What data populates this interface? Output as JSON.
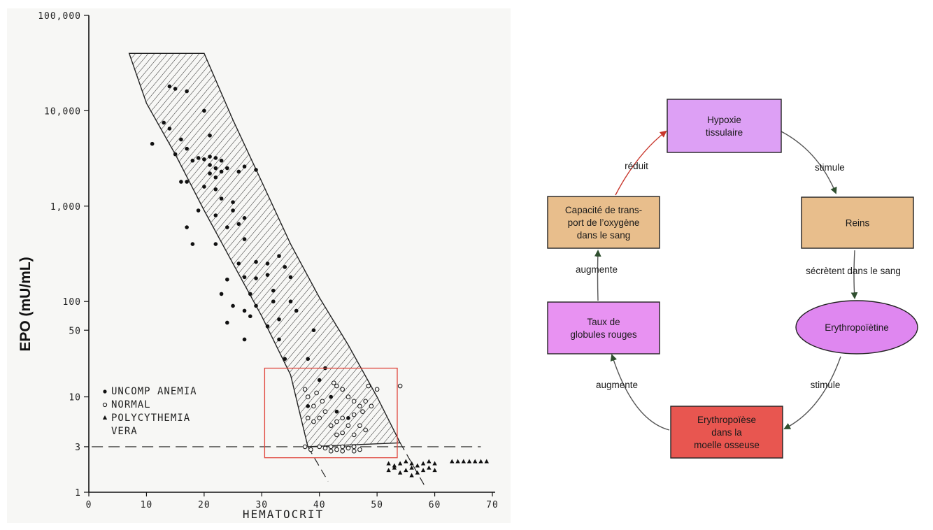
{
  "chart_data": {
    "type": "scatter",
    "xlabel": "HEMATOCRIT",
    "ylabel": "EPO (mU/mL)",
    "y_scale": "log",
    "xlim": [
      0,
      70
    ],
    "ylim": [
      1,
      100000
    ],
    "x_ticks": [
      {
        "value": 0,
        "label": "0"
      },
      {
        "value": 10,
        "label": "10"
      },
      {
        "value": 20,
        "label": "20"
      },
      {
        "value": 30,
        "label": "30"
      },
      {
        "value": 40,
        "label": "40"
      },
      {
        "value": 50,
        "label": "50"
      },
      {
        "value": 60,
        "label": "60"
      },
      {
        "value": 70,
        "label": "70"
      }
    ],
    "y_ticks": [
      {
        "value": 1,
        "label": "1"
      },
      {
        "value": 3,
        "label": "3"
      },
      {
        "value": 10,
        "label": "10"
      },
      {
        "value": 50,
        "label": "50"
      },
      {
        "value": 100,
        "label": "100"
      },
      {
        "value": 1000,
        "label": "1,000"
      },
      {
        "value": 10000,
        "label": "10,000"
      },
      {
        "value": 100000,
        "label": "100,000"
      }
    ],
    "legend": {
      "placement": "lower-left",
      "items": [
        {
          "marker": "circle-filled",
          "label": "UNCOMP ANEMIA"
        },
        {
          "marker": "circle-open",
          "label": "NORMAL"
        },
        {
          "marker": "triangle-filled",
          "label": "POLYCYTHEMIA"
        },
        {
          "marker": "none",
          "label": "VERA"
        }
      ]
    },
    "reference_band": {
      "upper_edge": [
        [
          20,
          40000
        ],
        [
          25,
          8000
        ],
        [
          30,
          1800
        ],
        [
          35,
          400
        ],
        [
          40,
          110
        ],
        [
          45,
          35
        ],
        [
          50,
          10
        ],
        [
          54,
          3.3
        ]
      ],
      "lower_edge": [
        [
          7,
          40000
        ],
        [
          10,
          12000
        ],
        [
          15,
          3500
        ],
        [
          20,
          900
        ],
        [
          25,
          250
        ],
        [
          30,
          70
        ],
        [
          35,
          17
        ],
        [
          38,
          3
        ]
      ],
      "band_line_extension": [
        [
          38,
          3
        ],
        [
          41.5,
          1.3
        ]
      ],
      "upper_line_extension": [
        [
          54,
          3.3
        ],
        [
          58.5,
          1.1
        ]
      ]
    },
    "threshold_line": {
      "y": 3,
      "style": "dashed"
    },
    "highlight_box": {
      "xlim": [
        30.5,
        53.5
      ],
      "ylim": [
        2.3,
        20
      ],
      "color": "#e0463c"
    },
    "series": [
      {
        "name": "UNCOMP ANEMIA",
        "marker": "circle-filled",
        "points": [
          [
            14,
            18000
          ],
          [
            15,
            17000
          ],
          [
            17,
            16000
          ],
          [
            11,
            4500
          ],
          [
            13,
            7500
          ],
          [
            14,
            6500
          ],
          [
            16,
            5000
          ],
          [
            20,
            10000
          ],
          [
            21,
            5500
          ],
          [
            15,
            3500
          ],
          [
            17,
            4000
          ],
          [
            18,
            3000
          ],
          [
            19,
            3200
          ],
          [
            20,
            3100
          ],
          [
            21,
            3300
          ],
          [
            22,
            3200
          ],
          [
            23,
            3000
          ],
          [
            21,
            2700
          ],
          [
            22,
            2500
          ],
          [
            21,
            2200
          ],
          [
            22,
            2000
          ],
          [
            23,
            2300
          ],
          [
            24,
            2500
          ],
          [
            26,
            2300
          ],
          [
            27,
            2600
          ],
          [
            29,
            2400
          ],
          [
            16,
            1800
          ],
          [
            17,
            1800
          ],
          [
            20,
            1600
          ],
          [
            22,
            1500
          ],
          [
            23,
            1200
          ],
          [
            25,
            1100
          ],
          [
            19,
            900
          ],
          [
            22,
            800
          ],
          [
            25,
            900
          ],
          [
            27,
            750
          ],
          [
            17,
            600
          ],
          [
            24,
            600
          ],
          [
            26,
            650
          ],
          [
            18,
            400
          ],
          [
            22,
            400
          ],
          [
            27,
            450
          ],
          [
            33,
            300
          ],
          [
            26,
            250
          ],
          [
            29,
            260
          ],
          [
            31,
            250
          ],
          [
            34,
            230
          ],
          [
            24,
            170
          ],
          [
            27,
            180
          ],
          [
            29,
            175
          ],
          [
            31,
            190
          ],
          [
            35,
            180
          ],
          [
            23,
            120
          ],
          [
            28,
            120
          ],
          [
            32,
            130
          ],
          [
            25,
            90
          ],
          [
            27,
            80
          ],
          [
            29,
            90
          ],
          [
            32,
            100
          ],
          [
            35,
            100
          ],
          [
            24,
            60
          ],
          [
            28,
            70
          ],
          [
            31,
            55
          ],
          [
            33,
            65
          ],
          [
            36,
            80
          ],
          [
            27,
            40
          ],
          [
            33,
            40
          ],
          [
            39,
            50
          ],
          [
            34,
            25
          ],
          [
            38,
            25
          ],
          [
            41,
            20
          ],
          [
            40,
            15
          ],
          [
            44,
            12
          ],
          [
            42,
            10
          ],
          [
            38,
            8
          ],
          [
            43,
            7
          ],
          [
            45,
            6
          ]
        ]
      },
      {
        "name": "NORMAL",
        "marker": "circle-open",
        "points": [
          [
            37.5,
            12
          ],
          [
            38,
            10
          ],
          [
            39,
            8
          ],
          [
            39.5,
            11
          ],
          [
            40.5,
            9
          ],
          [
            41,
            7
          ],
          [
            42.5,
            14
          ],
          [
            43,
            13
          ],
          [
            44,
            12
          ],
          [
            45,
            10
          ],
          [
            46,
            9
          ],
          [
            47,
            8
          ],
          [
            47.5,
            7
          ],
          [
            48,
            9
          ],
          [
            48.5,
            13
          ],
          [
            49,
            8
          ],
          [
            50,
            12
          ],
          [
            54,
            13
          ],
          [
            38,
            6
          ],
          [
            39,
            5.5
          ],
          [
            40,
            6
          ],
          [
            42,
            5
          ],
          [
            43,
            5.5
          ],
          [
            44,
            6
          ],
          [
            45,
            5
          ],
          [
            46,
            6.5
          ],
          [
            47,
            5
          ],
          [
            44,
            4.2
          ],
          [
            46,
            4
          ],
          [
            48,
            4.5
          ],
          [
            37.5,
            3
          ],
          [
            38.5,
            2.8
          ],
          [
            40,
            3
          ],
          [
            41,
            2.9
          ],
          [
            42,
            3
          ],
          [
            43,
            2.8
          ],
          [
            44,
            3
          ],
          [
            45,
            2.9
          ],
          [
            46,
            3
          ],
          [
            47,
            2.8
          ],
          [
            42,
            2.7
          ],
          [
            44,
            2.7
          ],
          [
            46,
            2.7
          ],
          [
            43,
            4
          ]
        ]
      },
      {
        "name": "POLYCYTHEMIA VERA",
        "marker": "triangle-filled",
        "points": [
          [
            52,
            2
          ],
          [
            53,
            1.9
          ],
          [
            54,
            2
          ],
          [
            55,
            2.1
          ],
          [
            56,
            2
          ],
          [
            57,
            1.9
          ],
          [
            58,
            2
          ],
          [
            59,
            2.1
          ],
          [
            60,
            2
          ],
          [
            52,
            1.7
          ],
          [
            53,
            1.8
          ],
          [
            55,
            1.7
          ],
          [
            56,
            1.8
          ],
          [
            57,
            1.6
          ],
          [
            58,
            1.7
          ],
          [
            59,
            1.8
          ],
          [
            60,
            1.7
          ],
          [
            54,
            1.6
          ],
          [
            56,
            1.5
          ],
          [
            63,
            2.1
          ],
          [
            64,
            2.1
          ],
          [
            65,
            2.1
          ],
          [
            66,
            2.1
          ],
          [
            67,
            2.1
          ],
          [
            68,
            2.1
          ],
          [
            69,
            2.1
          ]
        ]
      }
    ]
  },
  "diagram": {
    "nodes": [
      {
        "id": "hypoxie",
        "lines": [
          "Hypoxie",
          "tissulaire"
        ],
        "shape": "rect",
        "fill": "#dda0f5"
      },
      {
        "id": "reins",
        "lines": [
          "Reins"
        ],
        "shape": "rect",
        "fill": "#e8be8c"
      },
      {
        "id": "epo",
        "lines": [
          "Erythropoïètine"
        ],
        "shape": "ellipse",
        "fill": "#df87f0"
      },
      {
        "id": "moelle",
        "lines": [
          "Erythropoïèse",
          "dans la",
          "moelle osseuse"
        ],
        "shape": "rect",
        "fill": "#e85650"
      },
      {
        "id": "globules",
        "lines": [
          "Taux de",
          "globules rouges"
        ],
        "shape": "rect",
        "fill": "#e892f2"
      },
      {
        "id": "capacite",
        "lines": [
          "Capacité de trans-",
          "port de l’oxygène",
          "dans le sang"
        ],
        "shape": "rect",
        "fill": "#e8be8c"
      }
    ],
    "edges": [
      {
        "from": "hypoxie",
        "to": "reins",
        "label": "stimule",
        "color": "#2f4f2f"
      },
      {
        "from": "reins",
        "to": "epo",
        "label": "sécrètent dans le sang",
        "color": "#2f4f2f"
      },
      {
        "from": "epo",
        "to": "moelle",
        "label": "stimule",
        "color": "#2f4f2f"
      },
      {
        "from": "moelle",
        "to": "globules",
        "label": "augmente",
        "color": "#2f4f2f"
      },
      {
        "from": "globules",
        "to": "capacite",
        "label": "augmente",
        "color": "#2f4f2f"
      },
      {
        "from": "capacite",
        "to": "hypoxie",
        "label": "réduit",
        "color": "#c8372d"
      }
    ]
  }
}
